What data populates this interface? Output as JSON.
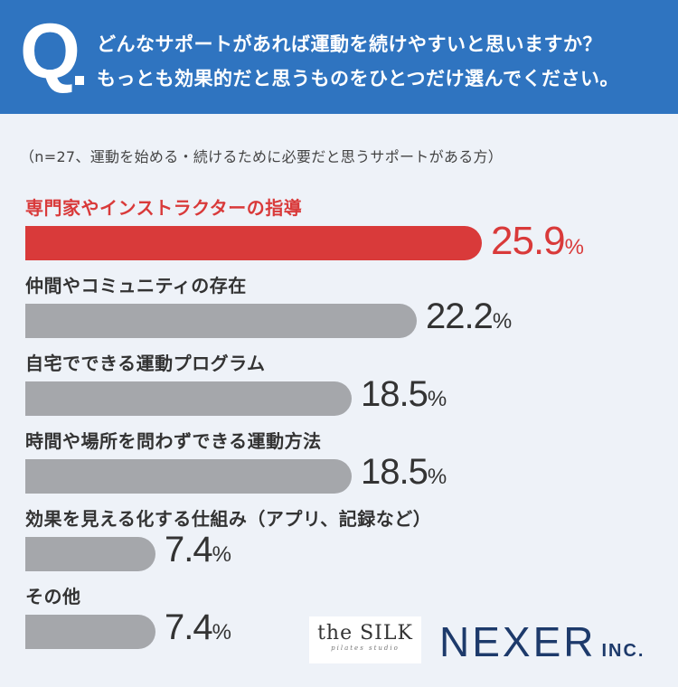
{
  "question": {
    "mark": "Q",
    "line1": "どんなサポートがあれば運動を続けやすいと思いますか？",
    "line2": "もっとも効果的だと思うものをひとつだけ選んでください。"
  },
  "note": "（n=27、運動を始める・続けるために必要だと思うサポートがある方）",
  "chart_data": {
    "type": "bar",
    "orientation": "horizontal",
    "categories": [
      "専門家やインストラクターの指導",
      "仲間やコミュニティの存在",
      "自宅でできる運動プログラム",
      "時間や場所を問わずできる運動方法",
      "効果を見える化する仕組み（アプリ、記録など）",
      "その他"
    ],
    "values": [
      25.9,
      22.2,
      18.5,
      18.5,
      7.4,
      7.4
    ],
    "value_labels": [
      "25.9",
      "22.2",
      "18.5",
      "18.5",
      "7.4",
      "7.4"
    ],
    "unit": "%",
    "highlight_index": 0,
    "colors": {
      "highlight": "#d93a3a",
      "default": "#a5a7ab"
    }
  },
  "logos": {
    "silk_main": "the SILK",
    "silk_sub": "pilates studio",
    "nexer_main": "NEXER",
    "nexer_inc": "INC."
  },
  "colors": {
    "header": "#2f74c0",
    "background": "#eef2f8",
    "brand_navy": "#1d3a6b"
  }
}
